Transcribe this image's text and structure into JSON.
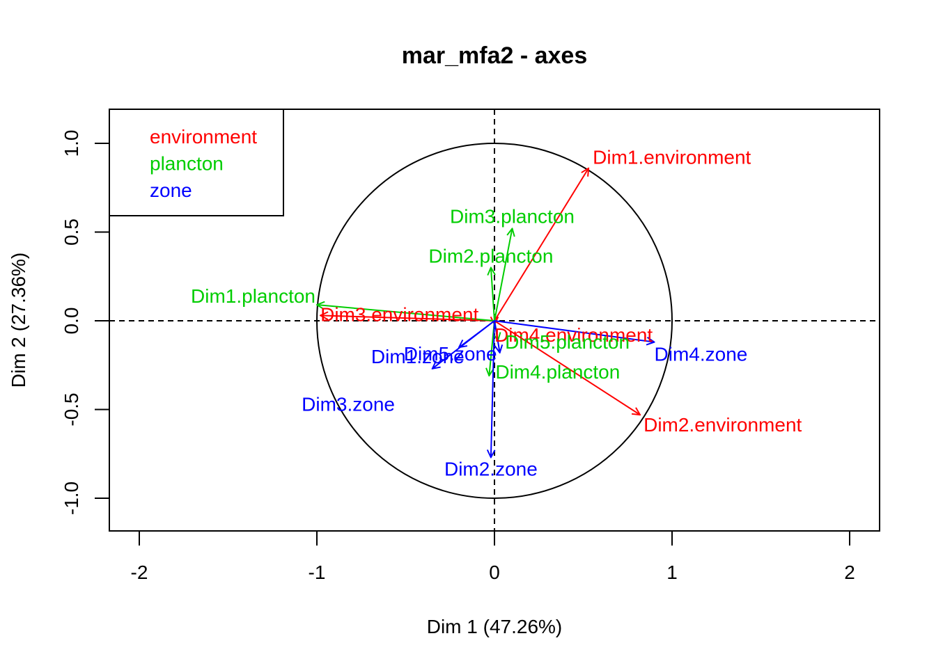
{
  "chart_data": {
    "type": "scatter",
    "title": "mar_mfa2 - axes",
    "xlabel": "Dim 1 (47.26%)",
    "ylabel": "Dim 2 (27.36%)",
    "xlim": [
      -2.0,
      2.0
    ],
    "ylim": [
      -1.15,
      1.15
    ],
    "xticks": [
      -2,
      -1,
      0,
      1,
      2
    ],
    "xtick_labels": [
      "-2",
      "-1",
      "0",
      "1",
      "2"
    ],
    "yticks": [
      -1.0,
      -0.5,
      0.0,
      0.5,
      1.0
    ],
    "ytick_labels": [
      "-1.0",
      "-0.5",
      "0.0",
      "0.5",
      "1.0"
    ],
    "grid": false,
    "reference_lines": {
      "x": 0,
      "y": 0
    },
    "unit_circle": true,
    "legend_position": "top-left",
    "colors": {
      "environment": "#ff0000",
      "plancton": "#00cd00",
      "zone": "#0000ff"
    },
    "series": [
      {
        "name": "environment",
        "color": "#ff0000",
        "points": [
          {
            "label": "Dim1.environment",
            "x": 0.53,
            "y": 0.86
          },
          {
            "label": "Dim2.environment",
            "x": 0.82,
            "y": -0.53
          },
          {
            "label": "Dim3.environment",
            "x": -0.98,
            "y": 0.03
          },
          {
            "label": "Dim4.environment",
            "x": 0.0,
            "y": -0.02
          }
        ]
      },
      {
        "name": "plancton",
        "color": "#00cd00",
        "points": [
          {
            "label": "Dim1.plancton",
            "x": -1.0,
            "y": 0.09
          },
          {
            "label": "Dim2.plancton",
            "x": -0.02,
            "y": 0.3
          },
          {
            "label": "Dim3.plancton",
            "x": 0.1,
            "y": 0.52
          },
          {
            "label": "Dim4.plancton",
            "x": -0.03,
            "y": -0.31
          },
          {
            "label": "Dim5.plancton",
            "x": 0.02,
            "y": -0.11
          }
        ]
      },
      {
        "name": "zone",
        "color": "#0000ff",
        "points": [
          {
            "label": "Dim1.zone",
            "x": -0.35,
            "y": -0.27
          },
          {
            "label": "Dim2.zone",
            "x": -0.02,
            "y": -0.77
          },
          {
            "label": "Dim3.zone",
            "x": -0.2,
            "y": -0.15
          },
          {
            "label": "Dim4.zone",
            "x": 0.9,
            "y": -0.12
          },
          {
            "label": "Dim5.zone",
            "x": 0.03,
            "y": -0.18
          }
        ]
      }
    ]
  }
}
